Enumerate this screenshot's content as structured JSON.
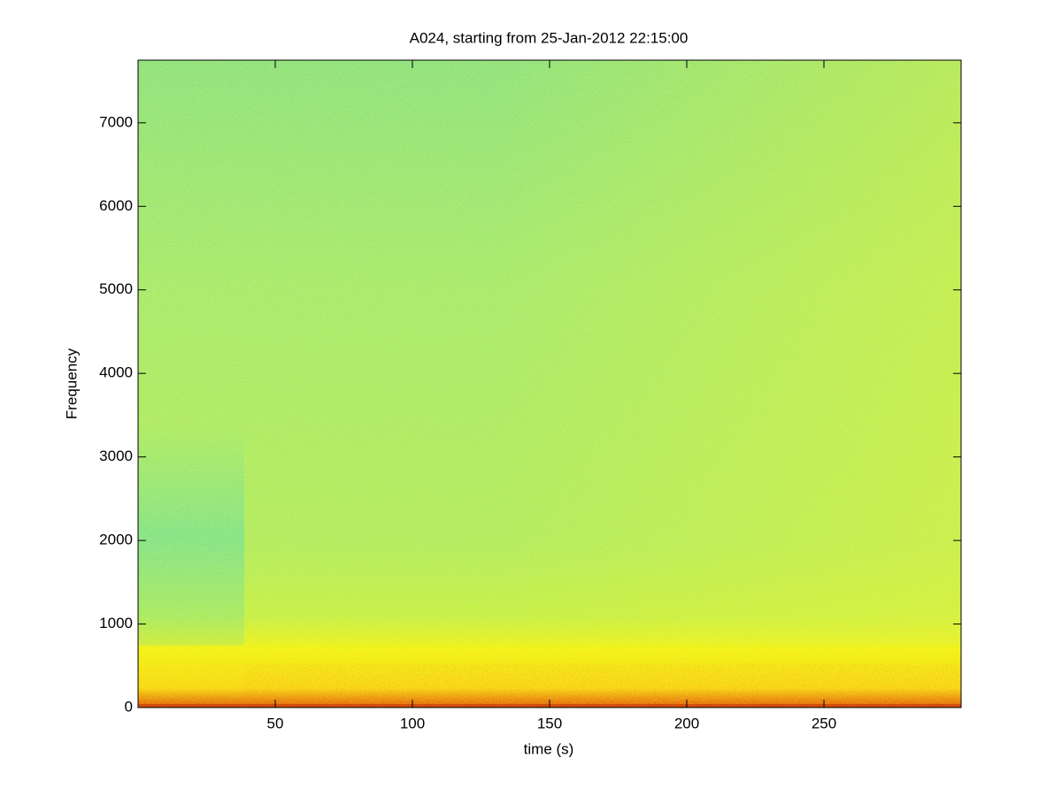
{
  "chart_data": {
    "type": "spectrogram",
    "title": "A024, starting from 25-Jan-2012 22:15:00",
    "xlabel": "time (s)",
    "ylabel": "Frequency",
    "xlim": [
      0,
      300
    ],
    "ylim": [
      0,
      7750
    ],
    "xticks": [
      50,
      100,
      150,
      200,
      250
    ],
    "yticks": [
      0,
      1000,
      2000,
      3000,
      4000,
      5000,
      6000,
      7000
    ]
  }
}
